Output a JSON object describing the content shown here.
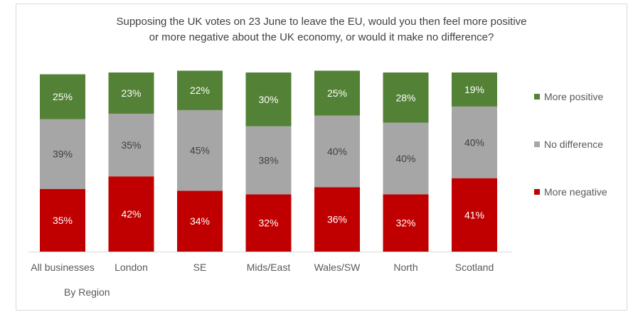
{
  "chart_data": {
    "type": "bar",
    "stacked": true,
    "percent": true,
    "title_lines": [
      "Supposing  the UK votes on 23 June to leave the EU,  would you then feel more positive",
      "or more negative about  the UK economy,  or would it make  no difference?"
    ],
    "categories": [
      "All businesses",
      "London",
      "SE",
      "Mids/East",
      "Wales/SW",
      "North",
      "Scotland"
    ],
    "series": [
      {
        "name": "More negative",
        "color": "#c00000",
        "values": [
          35,
          42,
          34,
          32,
          36,
          32,
          41
        ]
      },
      {
        "name": "No difference",
        "color": "#a6a6a6",
        "values": [
          39,
          35,
          45,
          38,
          40,
          40,
          40
        ]
      },
      {
        "name": "More positive",
        "color": "#538135",
        "values": [
          25,
          23,
          22,
          30,
          25,
          28,
          19
        ]
      }
    ],
    "legend_order": [
      "More positive",
      "No difference",
      "More negative"
    ],
    "legend_position": "right",
    "xlabel": "By Region",
    "ylabel": "",
    "ylim": [
      0,
      100
    ],
    "grid": false,
    "data_labels": true
  }
}
